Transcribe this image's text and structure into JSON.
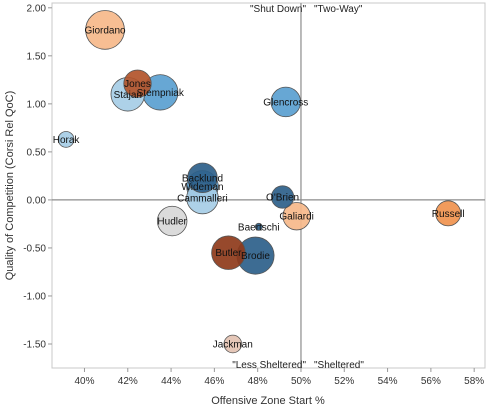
{
  "chart_data": {
    "type": "scatter",
    "xlabel": "Offensive Zone Start %",
    "ylabel": "Quality of Competition (Corsi Rel QoC)",
    "xlim": [
      0.385,
      0.585
    ],
    "ylim": [
      -1.75,
      2.05
    ],
    "x_ticks": [
      0.4,
      0.42,
      0.44,
      0.46,
      0.48,
      0.5,
      0.52,
      0.54,
      0.56,
      0.58
    ],
    "x_tick_labels": [
      "40%",
      "42%",
      "44%",
      "46%",
      "48%",
      "50%",
      "52%",
      "54%",
      "56%",
      "58%"
    ],
    "y_ticks": [
      2.0,
      1.5,
      1.0,
      0.5,
      0.0,
      -0.5,
      -1.0,
      -1.5
    ],
    "y_tick_labels": [
      "2.00",
      "1.50",
      "1.00",
      "0.50",
      "0.00",
      "-0.50",
      "-1.00",
      "-1.50"
    ],
    "grid": false,
    "reference_lines": {
      "x": 0.5,
      "y": 0.0
    },
    "quadrant_labels": [
      "\"Shut Down\"",
      "\"Two-Way\"",
      "\"Less Sheltered\"",
      "\"Sheltered\""
    ],
    "points": [
      {
        "name": "Giordano",
        "x": 0.4095,
        "y": 1.77,
        "size": 12,
        "color": "#f6b98a"
      },
      {
        "name": "Jones",
        "x": 0.4245,
        "y": 1.21,
        "size": 6,
        "color": "#b2542a"
      },
      {
        "name": "Stajan",
        "x": 0.42,
        "y": 1.1,
        "size": 9,
        "color": "#a6cde6"
      },
      {
        "name": "Stempniak",
        "x": 0.435,
        "y": 1.12,
        "size": 10,
        "color": "#5a9fd0"
      },
      {
        "name": "Glencross",
        "x": 0.493,
        "y": 1.02,
        "size": 7,
        "color": "#5a9fd0"
      },
      {
        "name": "Horak",
        "x": 0.3915,
        "y": 0.63,
        "size": 2,
        "color": "#a6cde6"
      },
      {
        "name": "Backlund",
        "x": 0.4545,
        "y": 0.23,
        "size": 7,
        "color": "#2d5f8a"
      },
      {
        "name": "Wideman",
        "x": 0.4545,
        "y": 0.14,
        "size": 8,
        "color": "#5a9fd0"
      },
      {
        "name": "Cammalleri",
        "x": 0.4545,
        "y": 0.02,
        "size": 8,
        "color": "#a6cde6"
      },
      {
        "name": "O'Brien",
        "x": 0.4915,
        "y": 0.03,
        "size": 4,
        "color": "#2d5f8a"
      },
      {
        "name": "Galiardi",
        "x": 0.498,
        "y": -0.17,
        "size": 6,
        "color": "#f6b98a"
      },
      {
        "name": "Russell",
        "x": 0.568,
        "y": -0.14,
        "size": 5,
        "color": "#f0934e"
      },
      {
        "name": "Hudler",
        "x": 0.4405,
        "y": -0.22,
        "size": 7,
        "color": "#d8d8d8"
      },
      {
        "name": "Baertschi",
        "x": 0.4805,
        "y": -0.28,
        "size": 0.4,
        "color": "#2d5f8a"
      },
      {
        "name": "Butler",
        "x": 0.4665,
        "y": -0.55,
        "size": 9,
        "color": "#8e3a1a"
      },
      {
        "name": "Brodie",
        "x": 0.479,
        "y": -0.58,
        "size": 11,
        "color": "#2d5f8a"
      },
      {
        "name": "Jackman",
        "x": 0.4685,
        "y": -1.5,
        "size": 2.5,
        "color": "#e3c2b2"
      }
    ]
  }
}
